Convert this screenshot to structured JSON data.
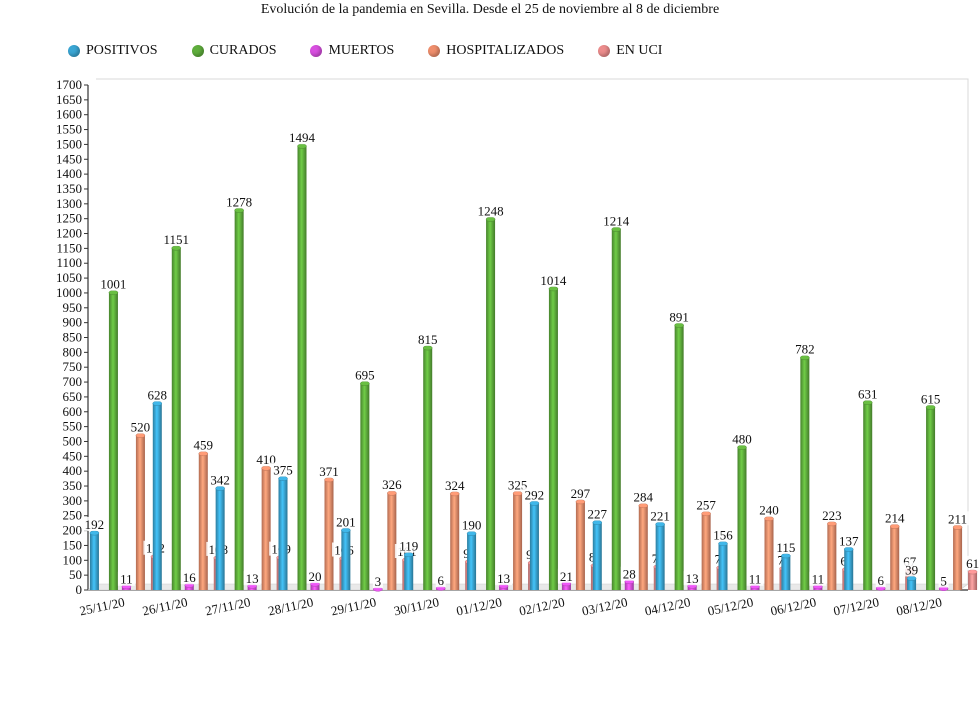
{
  "title": "Evolución de la pandemia en Sevilla. Desde el 25 de noviembre al 8 de diciembre",
  "chart_data": {
    "type": "bar",
    "title": "Evolución de la pandemia en Sevilla. Desde el 25 de noviembre al 8 de diciembre",
    "categories": [
      "25/11/20",
      "26/11/20",
      "27/11/20",
      "28/11/20",
      "29/11/20",
      "30/11/20",
      "01/12/20",
      "02/12/20",
      "03/12/20",
      "04/12/20",
      "05/12/20",
      "06/12/20",
      "07/12/20",
      "08/12/20"
    ],
    "series": [
      {
        "name": "POSITIVOS",
        "color": "#3aa6d4",
        "values": [
          192,
          628,
          342,
          375,
          201,
          119,
          190,
          292,
          227,
          221,
          156,
          115,
          137,
          39
        ]
      },
      {
        "name": "CURADOS",
        "color": "#5fae3c",
        "values": [
          1001,
          1151,
          1278,
          1494,
          695,
          815,
          1248,
          1014,
          1214,
          891,
          480,
          782,
          631,
          615
        ]
      },
      {
        "name": "MUERTOS",
        "color": "#d84fe0",
        "values": [
          11,
          16,
          13,
          20,
          3,
          6,
          13,
          21,
          28,
          13,
          11,
          11,
          6,
          5
        ]
      },
      {
        "name": "HOSPITALIZADOS",
        "color": "#ef8e6c",
        "values": [
          520,
          459,
          410,
          371,
          326,
          324,
          325,
          297,
          284,
          257,
          240,
          223,
          214,
          211
        ]
      },
      {
        "name": "EN UCI",
        "color": "#ec8c8c",
        "values": [
          112,
          108,
          109,
          106,
          101,
          95,
          91,
          82,
          78,
          75,
          72,
          69,
          67,
          61
        ]
      }
    ],
    "data_labels": [
      [
        "192",
        "1001",
        "11",
        "520",
        "112"
      ],
      [
        "628",
        "1151",
        "16",
        "459",
        "108"
      ],
      [
        "342",
        "1278",
        "13",
        "410",
        "109"
      ],
      [
        "375",
        "1494",
        "20",
        "371",
        "106"
      ],
      [
        "201",
        "695",
        "3",
        "326",
        "101"
      ],
      [
        "119",
        "815",
        "6",
        "324",
        "95"
      ],
      [
        "190",
        "1248",
        "13",
        "325",
        "91"
      ],
      [
        "292",
        "1014",
        "21",
        "297",
        "82"
      ],
      [
        "227",
        "1214",
        "28",
        "284",
        "78"
      ],
      [
        "221",
        "891",
        "13",
        "257",
        "75"
      ],
      [
        "156",
        "480",
        "11",
        "240",
        "72"
      ],
      [
        "115",
        "782",
        "11",
        "223",
        "69"
      ],
      [
        "137",
        "631",
        "6",
        "214",
        "67"
      ],
      [
        "39",
        "615",
        "5",
        "211",
        "61"
      ]
    ],
    "ylim": [
      0,
      1700
    ],
    "ytick_step": 50,
    "grid": false,
    "legend_position": "top"
  }
}
